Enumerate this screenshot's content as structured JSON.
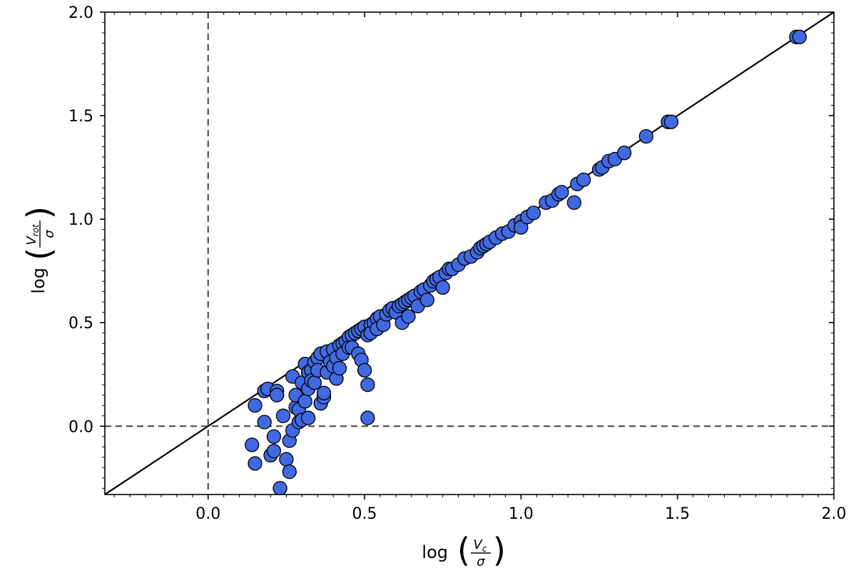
{
  "chart_data": {
    "type": "scatter",
    "xlabel": {
      "prefix": "log",
      "numerator": "V",
      "numerator_sub": "c",
      "denominator": "σ"
    },
    "ylabel": {
      "prefix": "log",
      "numerator": "V",
      "numerator_sub": "rot",
      "denominator": "σ"
    },
    "xlim": [
      -0.33,
      2.0
    ],
    "ylim": [
      -0.33,
      2.0
    ],
    "x_ticks": [
      "0.0",
      "0.5",
      "1.0",
      "1.5",
      "2.0"
    ],
    "y_ticks": [
      "0.0",
      "0.5",
      "1.0",
      "1.5",
      "2.0"
    ],
    "grid": false,
    "reference_lines": {
      "one_to_one": true,
      "dashed_zero_x": 0.0,
      "dashed_zero_y": 0.0
    },
    "marker_color": "#4169e1",
    "marker_edge": "#000000",
    "points": [
      [
        0.14,
        -0.09
      ],
      [
        0.15,
        -0.18
      ],
      [
        0.15,
        0.1
      ],
      [
        0.18,
        0.17
      ],
      [
        0.19,
        0.18
      ],
      [
        0.18,
        0.02
      ],
      [
        0.2,
        -0.14
      ],
      [
        0.21,
        -0.05
      ],
      [
        0.21,
        -0.12
      ],
      [
        0.22,
        0.17
      ],
      [
        0.22,
        0.15
      ],
      [
        0.23,
        -0.3
      ],
      [
        0.24,
        0.05
      ],
      [
        0.25,
        -0.16
      ],
      [
        0.26,
        -0.22
      ],
      [
        0.26,
        -0.07
      ],
      [
        0.27,
        0.24
      ],
      [
        0.27,
        -0.02
      ],
      [
        0.28,
        0.09
      ],
      [
        0.28,
        0.15
      ],
      [
        0.29,
        0.02
      ],
      [
        0.29,
        0.08
      ],
      [
        0.3,
        0.03
      ],
      [
        0.3,
        0.21
      ],
      [
        0.31,
        0.12
      ],
      [
        0.31,
        0.3
      ],
      [
        0.32,
        0.18
      ],
      [
        0.32,
        0.04
      ],
      [
        0.32,
        0.26
      ],
      [
        0.33,
        0.27
      ],
      [
        0.33,
        0.22
      ],
      [
        0.34,
        0.21
      ],
      [
        0.34,
        0.31
      ],
      [
        0.35,
        0.33
      ],
      [
        0.35,
        0.27
      ],
      [
        0.36,
        0.11
      ],
      [
        0.36,
        0.35
      ],
      [
        0.37,
        0.14
      ],
      [
        0.37,
        0.16
      ],
      [
        0.38,
        0.26
      ],
      [
        0.38,
        0.36
      ],
      [
        0.39,
        0.31
      ],
      [
        0.4,
        0.29
      ],
      [
        0.4,
        0.37
      ],
      [
        0.41,
        0.23
      ],
      [
        0.41,
        0.33
      ],
      [
        0.42,
        0.39
      ],
      [
        0.42,
        0.28
      ],
      [
        0.43,
        0.4
      ],
      [
        0.43,
        0.35
      ],
      [
        0.44,
        0.41
      ],
      [
        0.45,
        0.43
      ],
      [
        0.45,
        0.38
      ],
      [
        0.46,
        0.44
      ],
      [
        0.46,
        0.38
      ],
      [
        0.47,
        0.45
      ],
      [
        0.48,
        0.35
      ],
      [
        0.48,
        0.46
      ],
      [
        0.49,
        0.47
      ],
      [
        0.49,
        0.32
      ],
      [
        0.5,
        0.48
      ],
      [
        0.5,
        0.27
      ],
      [
        0.51,
        0.2
      ],
      [
        0.51,
        0.04
      ],
      [
        0.51,
        0.44
      ],
      [
        0.52,
        0.49
      ],
      [
        0.52,
        0.45
      ],
      [
        0.53,
        0.5
      ],
      [
        0.54,
        0.52
      ],
      [
        0.54,
        0.47
      ],
      [
        0.55,
        0.53
      ],
      [
        0.56,
        0.49
      ],
      [
        0.57,
        0.54
      ],
      [
        0.58,
        0.56
      ],
      [
        0.59,
        0.57
      ],
      [
        0.6,
        0.55
      ],
      [
        0.61,
        0.58
      ],
      [
        0.62,
        0.5
      ],
      [
        0.62,
        0.59
      ],
      [
        0.63,
        0.6
      ],
      [
        0.64,
        0.61
      ],
      [
        0.64,
        0.53
      ],
      [
        0.65,
        0.62
      ],
      [
        0.66,
        0.63
      ],
      [
        0.67,
        0.58
      ],
      [
        0.68,
        0.65
      ],
      [
        0.69,
        0.66
      ],
      [
        0.7,
        0.61
      ],
      [
        0.71,
        0.68
      ],
      [
        0.72,
        0.7
      ],
      [
        0.73,
        0.71
      ],
      [
        0.74,
        0.72
      ],
      [
        0.75,
        0.67
      ],
      [
        0.76,
        0.74
      ],
      [
        0.77,
        0.76
      ],
      [
        0.78,
        0.76
      ],
      [
        0.8,
        0.78
      ],
      [
        0.82,
        0.81
      ],
      [
        0.84,
        0.82
      ],
      [
        0.86,
        0.84
      ],
      [
        0.87,
        0.86
      ],
      [
        0.88,
        0.87
      ],
      [
        0.89,
        0.88
      ],
      [
        0.9,
        0.89
      ],
      [
        0.92,
        0.91
      ],
      [
        0.94,
        0.93
      ],
      [
        0.96,
        0.94
      ],
      [
        0.98,
        0.97
      ],
      [
        1.0,
        0.99
      ],
      [
        1.0,
        0.96
      ],
      [
        1.02,
        1.01
      ],
      [
        1.04,
        1.03
      ],
      [
        1.08,
        1.08
      ],
      [
        1.1,
        1.09
      ],
      [
        1.12,
        1.12
      ],
      [
        1.13,
        1.13
      ],
      [
        1.17,
        1.08
      ],
      [
        1.18,
        1.17
      ],
      [
        1.2,
        1.19
      ],
      [
        1.25,
        1.24
      ],
      [
        1.26,
        1.25
      ],
      [
        1.28,
        1.28
      ],
      [
        1.3,
        1.29
      ],
      [
        1.33,
        1.32
      ],
      [
        1.4,
        1.4
      ],
      [
        1.47,
        1.47
      ],
      [
        1.48,
        1.47
      ],
      [
        1.88,
        1.88
      ],
      [
        1.89,
        1.88
      ]
    ]
  }
}
